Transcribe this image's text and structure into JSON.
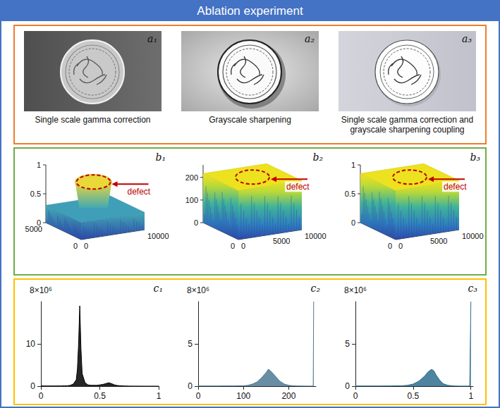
{
  "title": "Ablation experiment",
  "photos": [
    {
      "label": "a₁",
      "caption": "Single scale gamma correction"
    },
    {
      "label": "a₂",
      "caption": "Grayscale sharpening"
    },
    {
      "label": "a₃",
      "caption": "Single scale gamma correction and grayscale sharpening coupling"
    }
  ],
  "surfaces": [
    {
      "label": "b₁",
      "annotation": "defect",
      "zlim": [
        0,
        1
      ],
      "zticks": [
        0,
        0.5,
        1
      ],
      "xlim": [
        0,
        5000
      ],
      "xticks": [
        0,
        5000
      ],
      "ylim": [
        0,
        10000
      ],
      "yticks": [
        0,
        10000
      ]
    },
    {
      "label": "b₂",
      "annotation": "defect",
      "zlim": [
        0,
        255
      ],
      "zticks": [
        0,
        100,
        200
      ],
      "xlim": [
        0,
        5000
      ],
      "xticks": [
        0
      ],
      "ylim": [
        0,
        10000
      ],
      "yticks": [
        0,
        5000,
        10000
      ]
    },
    {
      "label": "b₃",
      "annotation": "defect",
      "zlim": [
        0,
        1
      ],
      "zticks": [
        0,
        0.5,
        1
      ],
      "xlim": [
        0,
        5000
      ],
      "xticks": [
        0
      ],
      "ylim": [
        0,
        10000
      ],
      "yticks": [
        0,
        5000,
        10000
      ]
    }
  ],
  "chart_data": [
    {
      "type": "area",
      "label": "c₁",
      "y_axis_label": "8×10⁶",
      "color": "#000000",
      "x": [
        0,
        0.025,
        0.05,
        0.075,
        0.1,
        0.125,
        0.15,
        0.175,
        0.2,
        0.225,
        0.25,
        0.275,
        0.3,
        0.31,
        0.32,
        0.33,
        0.34,
        0.35,
        0.375,
        0.4,
        0.425,
        0.45,
        0.475,
        0.5,
        0.525,
        0.55,
        0.575,
        0.6,
        0.625,
        0.65,
        0.7,
        0.75,
        0.8,
        0.9,
        1
      ],
      "values": [
        0.1,
        0.05,
        0.05,
        0.05,
        0.05,
        0.05,
        0.05,
        0.05,
        0.1,
        0.1,
        0.2,
        0.5,
        1.5,
        4,
        10,
        19,
        9,
        3,
        0.8,
        0.3,
        0.2,
        0.2,
        0.2,
        0.3,
        0.4,
        0.6,
        0.8,
        0.6,
        0.3,
        0.15,
        0.05,
        0.02,
        0.01,
        0,
        0
      ],
      "xlim": [
        0,
        1
      ],
      "xticks": [
        0,
        0.5,
        1
      ],
      "ylim": [
        0,
        20
      ],
      "yticks": [
        0,
        10
      ]
    },
    {
      "type": "area",
      "label": "c₂",
      "y_axis_label": "8×10⁶",
      "color": "#4d7a94",
      "x": [
        0,
        20,
        40,
        60,
        80,
        100,
        110,
        120,
        130,
        140,
        150,
        155,
        160,
        170,
        180,
        190,
        200,
        210,
        220,
        240,
        250,
        254,
        255
      ],
      "values": [
        0.02,
        0.02,
        0.02,
        0.03,
        0.03,
        0.05,
        0.1,
        0.25,
        0.5,
        1.0,
        1.6,
        2.0,
        1.8,
        1.2,
        0.6,
        0.25,
        0.1,
        0.04,
        0.02,
        0.01,
        0.01,
        0.01,
        10
      ],
      "xlim": [
        0,
        260
      ],
      "xticks": [
        0,
        100,
        200
      ],
      "ylim": [
        0,
        10
      ],
      "yticks": [
        0,
        5
      ]
    },
    {
      "type": "area",
      "label": "c₃",
      "y_axis_label": "8×10⁶",
      "color": "#2f6f8f",
      "x": [
        0,
        0.1,
        0.2,
        0.3,
        0.4,
        0.45,
        0.5,
        0.55,
        0.6,
        0.63,
        0.66,
        0.68,
        0.7,
        0.73,
        0.76,
        0.8,
        0.85,
        0.9,
        0.95,
        0.99,
        1
      ],
      "values": [
        0.02,
        0.02,
        0.02,
        0.03,
        0.05,
        0.1,
        0.25,
        0.6,
        1.2,
        1.7,
        2.0,
        1.8,
        1.3,
        0.7,
        0.3,
        0.1,
        0.03,
        0.01,
        0.01,
        0.01,
        10
      ],
      "xlim": [
        0,
        1.02
      ],
      "xticks": [
        0,
        0.5,
        1
      ],
      "ylim": [
        0,
        10
      ],
      "yticks": [
        0,
        5
      ]
    }
  ]
}
